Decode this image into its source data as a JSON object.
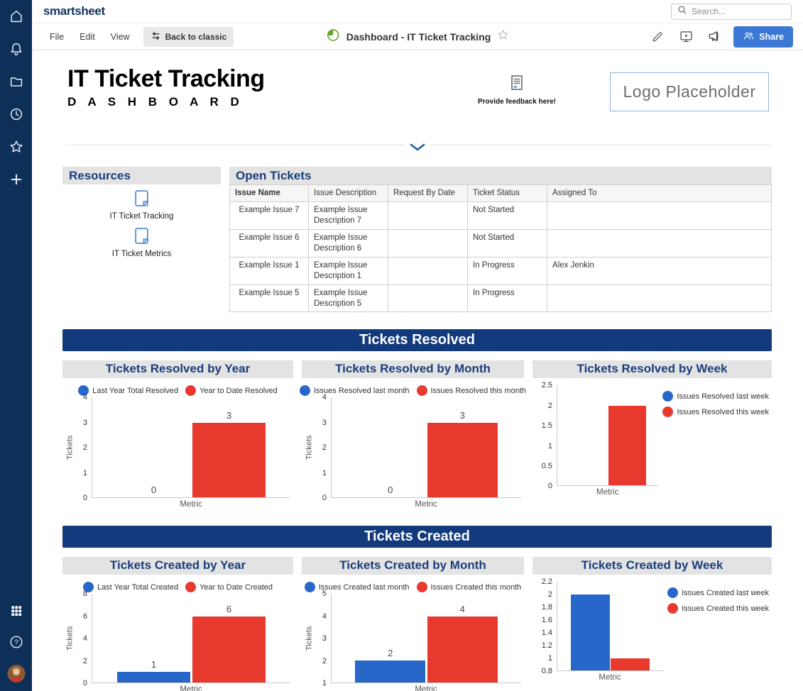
{
  "app": {
    "logo": "smartsheet",
    "search_placeholder": "Search..."
  },
  "sidebar": {
    "icons": [
      "home",
      "notifications",
      "browse-folder",
      "recents-clock",
      "favorites-star",
      "create-plus",
      "app-launcher-grid",
      "help",
      "account-avatar"
    ]
  },
  "menubar": {
    "items": [
      "File",
      "Edit",
      "View"
    ],
    "back_to_classic": "Back to classic",
    "doc_title": "Dashboard - IT Ticket Tracking",
    "share_label": "Share",
    "right_icons": [
      "edit-pencil",
      "present-screen",
      "megaphone",
      "share-people"
    ]
  },
  "header": {
    "title": "IT Ticket Tracking",
    "subtitle": "D A S H B O A R D",
    "feedback_label": "Provide feedback here!",
    "logo_placeholder": "Logo Placeholder"
  },
  "resources": {
    "title": "Resources",
    "items": [
      {
        "label": "IT Ticket Tracking"
      },
      {
        "label": "IT Ticket Metrics"
      }
    ]
  },
  "open_tickets": {
    "title": "Open Tickets",
    "columns": [
      "Issue Name",
      "Issue Description",
      "Request By Date",
      "Ticket Status",
      "Assigned To"
    ],
    "rows": [
      [
        "Example Issue 7",
        "Example Issue Description 7",
        "",
        "Not Started",
        ""
      ],
      [
        "Example Issue 6",
        "Example Issue Description 6",
        "",
        "Not Started",
        ""
      ],
      [
        "Example Issue 1",
        "Example Issue Description 1",
        "",
        "In Progress",
        "Alex Jenkin"
      ],
      [
        "Example Issue 5",
        "Example Issue Description 5",
        "",
        "In Progress",
        ""
      ]
    ]
  },
  "sections": [
    {
      "banner": "Tickets Resolved"
    },
    {
      "banner": "Tickets Created"
    }
  ],
  "colors": {
    "bar_blue": "#2767c9",
    "bar_red": "#e8392f",
    "banner_navy": "#123a7d",
    "sidebar_navy": "#0e3058",
    "heading_navy": "#1a3e7c",
    "share_blue": "#3b79d4",
    "dashboard_icon_green": "#67a32f"
  },
  "chart_data": [
    {
      "type": "bar",
      "section": 0,
      "title": "Tickets Resolved by Year",
      "categories": [
        "Metric"
      ],
      "xlabel": "Metric",
      "ylabel": "Tickets",
      "ylim": [
        0,
        4
      ],
      "yticks": [
        0,
        1,
        2,
        3,
        4
      ],
      "legend": "top",
      "bar_labels": true,
      "series": [
        {
          "name": "Last Year Total Resolved",
          "color_key": "blue",
          "values": [
            0
          ]
        },
        {
          "name": "Year to Date Resolved",
          "color_key": "red",
          "values": [
            3
          ]
        }
      ]
    },
    {
      "type": "bar",
      "section": 0,
      "title": "Tickets Resolved by Month",
      "categories": [
        "Metric"
      ],
      "xlabel": "Metric",
      "ylabel": "Tickets",
      "ylim": [
        0,
        4
      ],
      "yticks": [
        0,
        1,
        2,
        3,
        4
      ],
      "legend": "top",
      "bar_labels": true,
      "series": [
        {
          "name": "Issues Resolved last month",
          "color_key": "blue",
          "values": [
            0
          ]
        },
        {
          "name": "Issues Resolved this month",
          "color_key": "red",
          "values": [
            3
          ]
        }
      ]
    },
    {
      "type": "bar",
      "section": 0,
      "title": "Tickets Resolved by Week",
      "categories": [
        "Metric"
      ],
      "xlabel": "Metric",
      "ylabel": "",
      "ylim": [
        0,
        2.5
      ],
      "yticks": [
        0,
        0.5,
        1,
        1.5,
        2,
        2.5
      ],
      "legend": "right",
      "bar_labels": false,
      "series": [
        {
          "name": "Issues Resolved last week",
          "color_key": "blue",
          "values": [
            0
          ]
        },
        {
          "name": "Issues Resolved this week",
          "color_key": "red",
          "values": [
            2
          ]
        }
      ]
    },
    {
      "type": "bar",
      "section": 1,
      "title": "Tickets Created by Year",
      "categories": [
        "Metric"
      ],
      "xlabel": "Metric",
      "ylabel": "Tickets",
      "ylim": [
        0,
        8
      ],
      "yticks": [
        0,
        2,
        4,
        6,
        8
      ],
      "legend": "top",
      "bar_labels": true,
      "series": [
        {
          "name": "Last Year Total Created",
          "color_key": "blue",
          "values": [
            1
          ]
        },
        {
          "name": "Year to Date Created",
          "color_key": "red",
          "values": [
            6
          ]
        }
      ]
    },
    {
      "type": "bar",
      "section": 1,
      "title": "Tickets Created by Month",
      "categories": [
        "Metric"
      ],
      "xlabel": "Metric",
      "ylabel": "Tickets",
      "ylim": [
        1,
        5
      ],
      "yticks": [
        1,
        2,
        3,
        4,
        5
      ],
      "legend": "top",
      "bar_labels": true,
      "series": [
        {
          "name": "Issues Created last month",
          "color_key": "blue",
          "values": [
            2
          ]
        },
        {
          "name": "Issues Created this month",
          "color_key": "red",
          "values": [
            4
          ]
        }
      ]
    },
    {
      "type": "bar",
      "section": 1,
      "title": "Tickets Created by Week",
      "categories": [
        "Metric"
      ],
      "xlabel": "Metric",
      "ylabel": "",
      "ylim": [
        0.8,
        2.2
      ],
      "yticks": [
        0.8,
        1,
        1.2,
        1.4,
        1.6,
        1.8,
        2,
        2.2
      ],
      "legend": "right",
      "bar_labels": false,
      "series": [
        {
          "name": "Issues Created last week",
          "color_key": "blue",
          "values": [
            2
          ]
        },
        {
          "name": "Issues Created this week",
          "color_key": "red",
          "values": [
            1
          ]
        }
      ]
    }
  ]
}
